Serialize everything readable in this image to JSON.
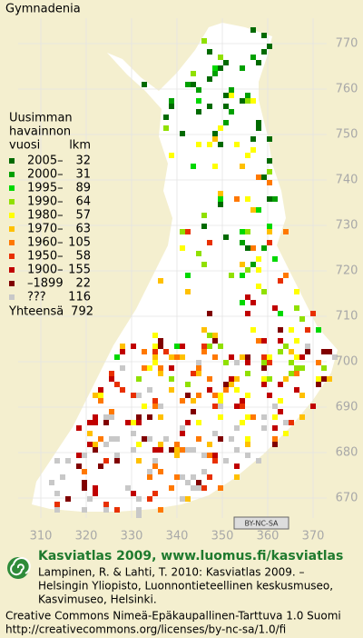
{
  "title": "Gymnadenia",
  "legend": {
    "heading": [
      "Uusimman",
      "havainnon",
      "vuosi"
    ],
    "count_heading": "lkm",
    "rows": [
      {
        "label": "2005–",
        "count": 32,
        "color": "#006a00"
      },
      {
        "label": "2000–",
        "count": 31,
        "color": "#00a000"
      },
      {
        "label": "1995–",
        "count": 89,
        "color": "#00d800"
      },
      {
        "label": "1990–",
        "count": 64,
        "color": "#90e000"
      },
      {
        "label": "1980–",
        "count": 57,
        "color": "#ffff00"
      },
      {
        "label": "1970–",
        "count": 63,
        "color": "#ffc000"
      },
      {
        "label": "1960–",
        "count": 105,
        "color": "#ff7800"
      },
      {
        "label": "1950–",
        "count": 58,
        "color": "#e83000"
      },
      {
        "label": "1900–",
        "count": 155,
        "color": "#c00000"
      },
      {
        "label": "–1899",
        "count": 22,
        "color": "#800000"
      },
      {
        "label": "???",
        "count": 116,
        "color": "#c8c8c8"
      }
    ],
    "total_label": "Yhteensä",
    "total": 792
  },
  "grid": {
    "north_labels": [
      770,
      760,
      750,
      740,
      730,
      720,
      710,
      700,
      690,
      680,
      670
    ],
    "east_labels": [
      310,
      320,
      330,
      340,
      350,
      360,
      370
    ]
  },
  "license_badge": "BY-NC-SA",
  "footer": {
    "brand": "Kasviatlas 2009, www.luomus.fi/kasviatlas",
    "citation": [
      "Lampinen, R. & Lahti, T. 2010: Kasviatlas 2009. –",
      "Helsingin Yliopisto, Luonnontieteellinen keskusmuseo,",
      "Kasvimuseo, Helsinki."
    ],
    "license": [
      "Creative Commons Nimeä-Epäkaupallinen-Tarttuva 1.0 Suomi",
      "http://creativecommons.org/licenses/by-nc-sa/1.0/fi"
    ]
  }
}
